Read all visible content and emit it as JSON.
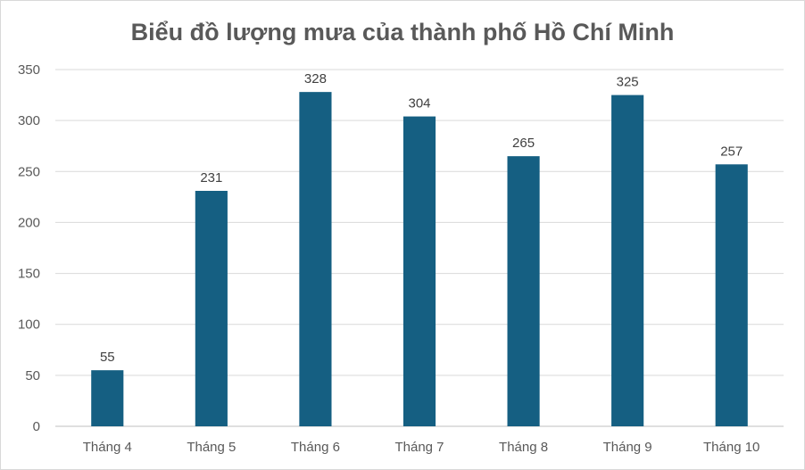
{
  "chart_data": {
    "type": "bar",
    "title": "Biểu đồ lượng mưa của thành phố Hồ Chí Minh",
    "categories": [
      "Tháng 4",
      "Tháng 5",
      "Tháng 6",
      "Tháng 7",
      "Tháng 8",
      "Tháng 9",
      "Tháng 10"
    ],
    "values": [
      55,
      231,
      328,
      304,
      265,
      325,
      257
    ],
    "ylim": [
      0,
      350
    ],
    "yticks": [
      0,
      50,
      100,
      150,
      200,
      250,
      300,
      350
    ],
    "grid": true,
    "legend": "none",
    "bar_color": "#155F82"
  }
}
